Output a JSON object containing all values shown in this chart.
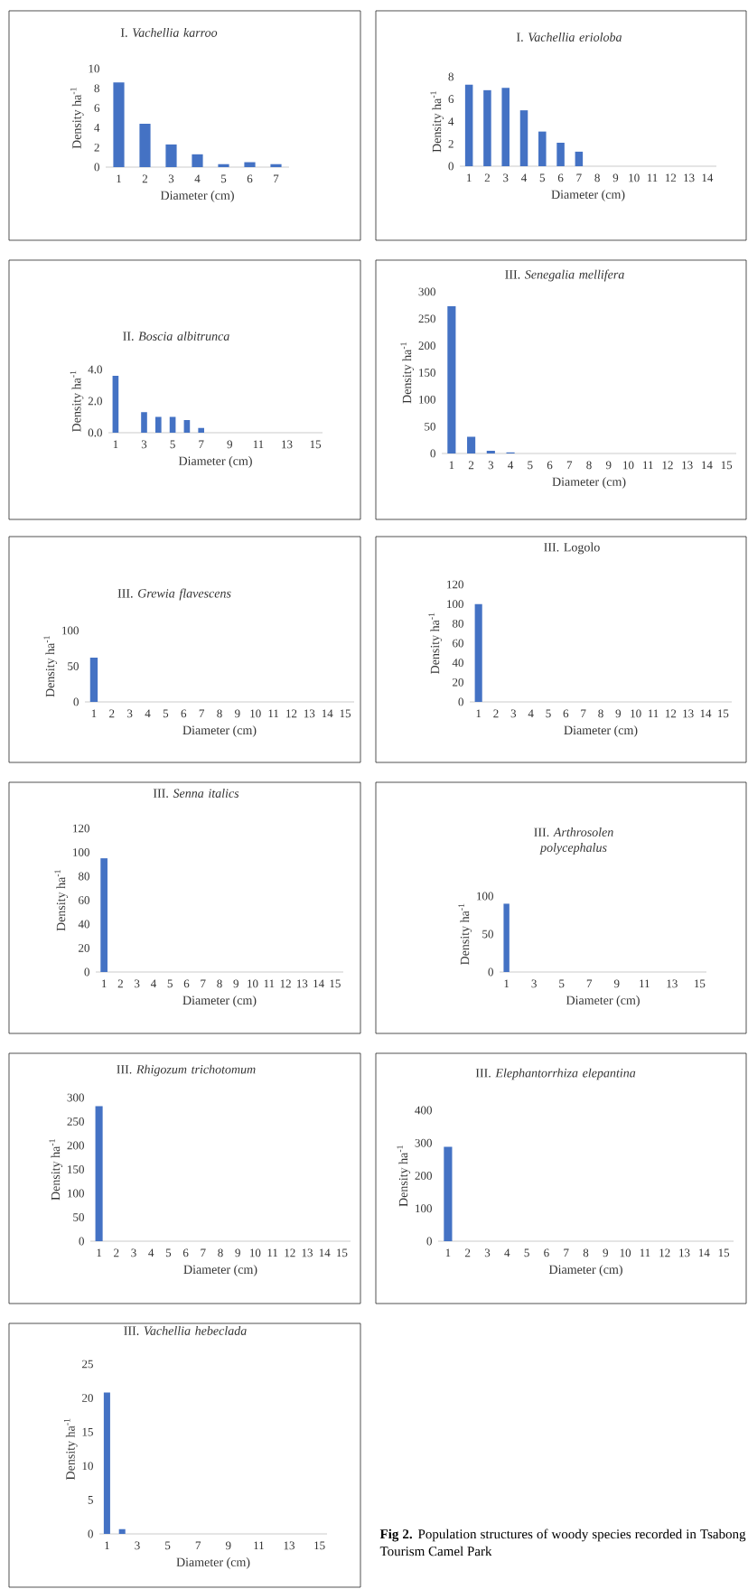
{
  "chart_data": [
    {
      "type": "bar",
      "title": "I. *Vachellia karroo*",
      "xlabel": "Diameter (cm)",
      "ylabel": "Density ha$^{-1}$",
      "categories": [
        "1",
        "2",
        "3",
        "4",
        "5",
        "6",
        "7"
      ],
      "values": [
        8.6,
        4.4,
        2.3,
        1.3,
        0.3,
        0.5,
        0.3
      ],
      "color": "#4472c4",
      "ylim": [
        0,
        10
      ],
      "yticks": [
        0,
        2,
        4,
        6,
        8,
        10
      ]
    },
    {
      "type": "bar",
      "title": "I. *Vachellia erioloba*",
      "xlabel": "Diameter (cm)",
      "ylabel": "Density ha$^{-1}$",
      "categories": [
        "1",
        "2",
        "3",
        "4",
        "5",
        "6",
        "7",
        "8",
        "9",
        "10",
        "11",
        "12",
        "13",
        "14"
      ],
      "values": [
        7.3,
        6.8,
        7.0,
        5.0,
        3.1,
        2.1,
        1.3,
        0,
        0,
        0,
        0,
        0,
        0,
        0
      ],
      "color": "#4472c4",
      "ylim": [
        0,
        8
      ],
      "yticks": [
        0,
        2,
        4,
        6,
        8
      ]
    },
    {
      "type": "bar",
      "title": "II. *Boscia albitrunca*",
      "xlabel": "Diameter (cm)",
      "ylabel": "Density ha$^{-1}$",
      "categories": [
        "1",
        null,
        "3",
        null,
        "5",
        null,
        "7",
        null,
        "9",
        null,
        "11",
        null,
        "13",
        null,
        "15"
      ],
      "values": [
        3.6,
        0,
        1.3,
        1.0,
        1.0,
        0.8,
        0.3,
        0,
        0,
        0,
        0,
        0,
        0,
        0,
        0
      ],
      "color": "#4472c4",
      "ylim": [
        0,
        4
      ],
      "yticks": [
        {
          "value": 0,
          "label": "0.0"
        },
        {
          "value": 2,
          "label": "2.0"
        },
        {
          "value": 4,
          "label": "4.0"
        }
      ]
    },
    {
      "type": "bar",
      "title": "III. *Senegalia mellifera*",
      "xlabel": "Diameter (cm)",
      "ylabel": "Density ha$^{-1}$",
      "categories": [
        "1",
        "2",
        "3",
        "4",
        "5",
        "6",
        "7",
        "8",
        "9",
        "10",
        "11",
        "12",
        "13",
        "14",
        "15"
      ],
      "values": [
        273,
        31,
        5,
        2,
        0,
        0,
        0,
        0,
        0,
        0,
        0,
        0,
        0,
        0,
        0
      ],
      "color": "#4472c4",
      "ylim": [
        0,
        300
      ],
      "yticks": [
        0,
        50,
        100,
        150,
        200,
        250,
        300
      ]
    },
    {
      "type": "bar",
      "title": "III. *Grewia flavescens*",
      "xlabel": "Diameter (cm)",
      "ylabel": "Density ha$^{-1}$",
      "categories": [
        "1",
        "2",
        "3",
        "4",
        "5",
        "6",
        "7",
        "8",
        "9",
        "10",
        "11",
        "12",
        "13",
        "14",
        "15"
      ],
      "values": [
        62,
        0,
        0,
        0,
        0,
        0,
        0,
        0,
        0,
        0,
        0,
        0,
        0,
        0,
        0
      ],
      "color": "#4472c4",
      "ylim": [
        0,
        100
      ],
      "yticks": [
        0,
        50,
        100
      ]
    },
    {
      "type": "bar",
      "title": "III. Logolo",
      "xlabel": "Diameter (cm)",
      "ylabel": "Density ha$^{-1}$",
      "categories": [
        "1",
        "2",
        "3",
        "4",
        "5",
        "6",
        "7",
        "8",
        "9",
        "10",
        "11",
        "12",
        "13",
        "14",
        "15"
      ],
      "values": [
        100,
        0,
        0,
        0,
        0,
        0,
        0,
        0,
        0,
        0,
        0,
        0,
        0,
        0,
        0
      ],
      "color": "#4472c4",
      "ylim": [
        0,
        120
      ],
      "yticks": [
        0,
        20,
        40,
        60,
        80,
        100,
        120
      ]
    },
    {
      "type": "bar",
      "title": "III. *Senna italics*",
      "xlabel": "Diameter (cm)",
      "ylabel": "Density ha$^{-1}$",
      "categories": [
        "1",
        "2",
        "3",
        "4",
        "5",
        "6",
        "7",
        "8",
        "9",
        "10",
        "11",
        "12",
        "13",
        "14",
        "15"
      ],
      "values": [
        95,
        0,
        0,
        0,
        0,
        0,
        0,
        0,
        0,
        0,
        0,
        0,
        0,
        0,
        0
      ],
      "color": "#4472c4",
      "ylim": [
        0,
        120
      ],
      "yticks": [
        0,
        20,
        40,
        60,
        80,
        100,
        120
      ]
    },
    {
      "type": "bar",
      "title": "III. *Arthrosolen polycephalus*",
      "xlabel": "Diameter (cm)",
      "ylabel": "Density ha$^{-1}$",
      "categories": [
        "1",
        null,
        "3",
        null,
        "5",
        null,
        "7",
        null,
        "9",
        null,
        "11",
        null,
        "13",
        null,
        "15"
      ],
      "values": [
        90,
        0,
        0,
        0,
        0,
        0,
        0,
        0,
        0,
        0,
        0,
        0,
        0,
        0,
        0
      ],
      "color": "#4472c4",
      "ylim": [
        0,
        100
      ],
      "yticks": [
        0,
        50,
        100
      ]
    },
    {
      "type": "bar",
      "title": "III. *Rhigozum trichotomum*",
      "xlabel": "Diameter (cm)",
      "ylabel": "Density ha$^{-1}$",
      "categories": [
        "1",
        "2",
        "3",
        "4",
        "5",
        "6",
        "7",
        "8",
        "9",
        "10",
        "11",
        "12",
        "13",
        "14",
        "15"
      ],
      "values": [
        282,
        0,
        0,
        0,
        0,
        0,
        0,
        0,
        0,
        0,
        0,
        0,
        0,
        0,
        0
      ],
      "color": "#4472c4",
      "ylim": [
        0,
        300
      ],
      "yticks": [
        0,
        50,
        100,
        150,
        200,
        250,
        300
      ]
    },
    {
      "type": "bar",
      "title": "III. *Elephantorrhiza elepantina*",
      "xlabel": "Diameter (cm)",
      "ylabel": "Density ha$^{-1}$",
      "categories": [
        "1",
        "2",
        "3",
        "4",
        "5",
        "6",
        "7",
        "8",
        "9",
        "10",
        "11",
        "12",
        "13",
        "14",
        "15"
      ],
      "values": [
        288,
        0,
        0,
        0,
        0,
        0,
        0,
        0,
        0,
        0,
        0,
        0,
        0,
        0,
        0
      ],
      "color": "#4472c4",
      "ylim": [
        0,
        400
      ],
      "yticks": [
        0,
        100,
        200,
        300,
        400
      ]
    },
    {
      "type": "bar",
      "title": "III. *Vachellia hebeclada*",
      "xlabel": "Diameter (cm)",
      "ylabel": "Density ha$^{-1}$",
      "categories": [
        "1",
        null,
        "3",
        null,
        "5",
        null,
        "7",
        null,
        "9",
        null,
        "11",
        null,
        "13",
        null,
        "15"
      ],
      "values": [
        20.8,
        0.7,
        0,
        0,
        0,
        0,
        0,
        0,
        0,
        0,
        0,
        0,
        0,
        0,
        0
      ],
      "color": "#4472c4",
      "ylim": [
        0,
        25
      ],
      "yticks": [
        0,
        5,
        10,
        15,
        20,
        25
      ],
      "annotations": [
        "**Fig 2.** Population structures of woody species recorded in Tsabong Tourism Camel Park"
      ]
    }
  ]
}
